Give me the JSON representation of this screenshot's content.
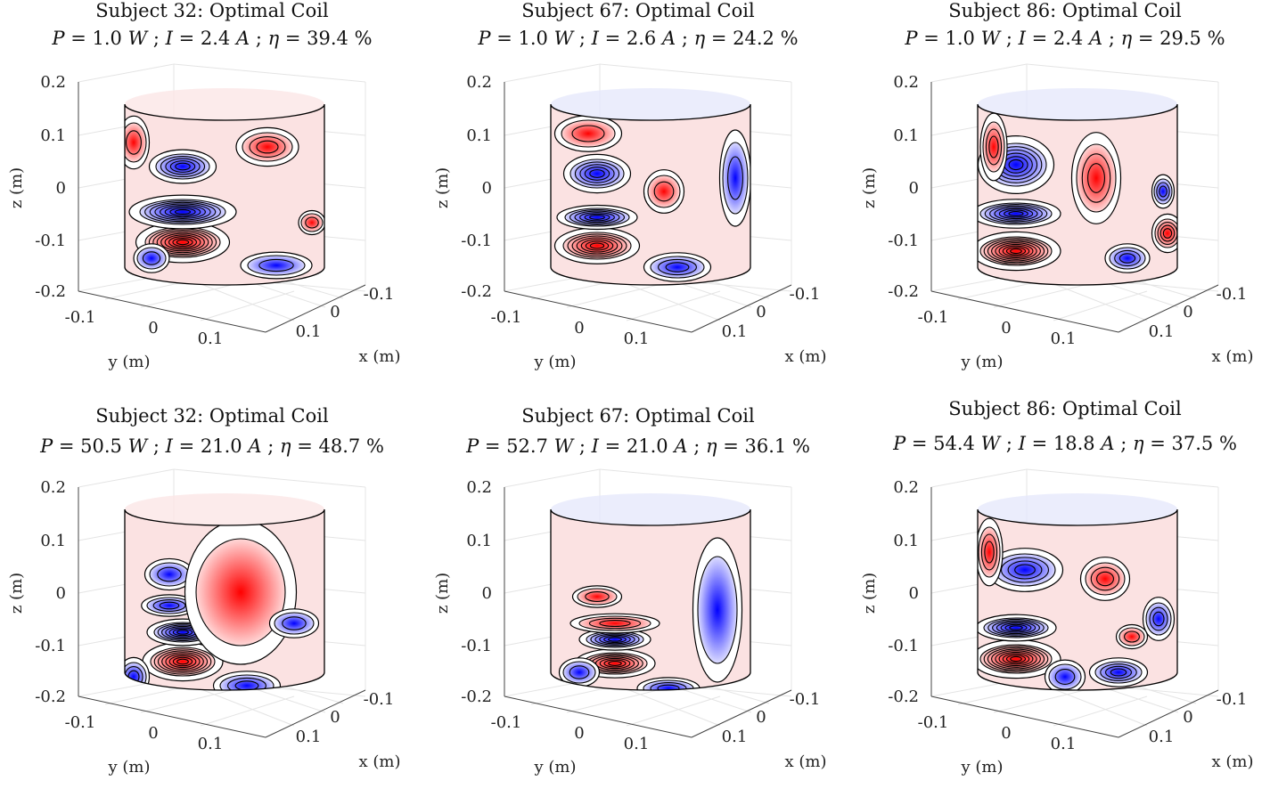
{
  "chart_data": [
    {
      "type": "surface",
      "title": "Subject 32: Optimal Coil",
      "P": "1.0",
      "I": "2.4",
      "eta": "39.4",
      "xlabel": "x (m)",
      "ylabel": "y (m)",
      "zlabel": "z (m)",
      "xticks": [
        "-0.1",
        "0",
        "0.1"
      ],
      "yticks": [
        "-0.1",
        "0",
        "0.1"
      ],
      "zticks": [
        "0.2",
        "0.1",
        "0",
        "-0.1",
        "-0.2"
      ],
      "zlim": [
        -0.2,
        0.2
      ],
      "colormap": [
        "#0000ff",
        "#ffffff",
        "#ff0000"
      ]
    },
    {
      "type": "surface",
      "title": "Subject 67: Optimal Coil",
      "P": "1.0",
      "I": "2.6",
      "eta": "24.2",
      "xlabel": "x (m)",
      "ylabel": "y (m)",
      "zlabel": "z (m)",
      "xticks": [
        "-0.1",
        "0",
        "0.1"
      ],
      "yticks": [
        "-0.1",
        "0",
        "0.1"
      ],
      "zticks": [
        "0.2",
        "0.1",
        "0",
        "-0.1",
        "-0.2"
      ],
      "zlim": [
        -0.2,
        0.2
      ],
      "colormap": [
        "#0000ff",
        "#ffffff",
        "#ff0000"
      ]
    },
    {
      "type": "surface",
      "title": "Subject 86: Optimal Coil",
      "P": "1.0",
      "I": "2.4",
      "eta": "29.5",
      "xlabel": "x (m)",
      "ylabel": "y (m)",
      "zlabel": "z (m)",
      "xticks": [
        "-0.1",
        "0",
        "0.1"
      ],
      "yticks": [
        "-0.1",
        "0",
        "0.1"
      ],
      "zticks": [
        "0.2",
        "0.1",
        "0",
        "-0.1",
        "-0.2"
      ],
      "zlim": [
        -0.2,
        0.2
      ],
      "colormap": [
        "#0000ff",
        "#ffffff",
        "#ff0000"
      ]
    },
    {
      "type": "surface",
      "title": "Subject 32: Optimal Coil",
      "P": "50.5",
      "I": "21.0",
      "eta": "48.7",
      "xlabel": "x (m)",
      "ylabel": "y (m)",
      "zlabel": "z (m)",
      "xticks": [
        "-0.1",
        "0",
        "0.1"
      ],
      "yticks": [
        "-0.1",
        "0",
        "0.1"
      ],
      "zticks": [
        "0.2",
        "0.1",
        "0",
        "-0.1",
        "-0.2"
      ],
      "zlim": [
        -0.2,
        0.2
      ],
      "colormap": [
        "#0000ff",
        "#ffffff",
        "#ff0000"
      ]
    },
    {
      "type": "surface",
      "title": "Subject 67: Optimal Coil",
      "P": "52.7",
      "I": "21.0",
      "eta": "36.1",
      "xlabel": "x (m)",
      "ylabel": "y (m)",
      "zlabel": "z (m)",
      "xticks": [
        "-0.1",
        "0",
        "0.1"
      ],
      "yticks": [
        "-0.1",
        "0",
        "0.1"
      ],
      "zticks": [
        "0.2",
        "0.1",
        "0",
        "-0.1",
        "-0.2"
      ],
      "zlim": [
        -0.2,
        0.2
      ],
      "colormap": [
        "#0000ff",
        "#ffffff",
        "#ff0000"
      ]
    },
    {
      "type": "surface",
      "title": "Subject 86: Optimal Coil",
      "P": "54.4",
      "I": "18.8",
      "eta": "37.5",
      "xlabel": "x (m)",
      "ylabel": "y (m)",
      "zlabel": "z (m)",
      "xticks": [
        "-0.1",
        "0",
        "0.1"
      ],
      "yticks": [
        "-0.1",
        "0",
        "0.1"
      ],
      "zticks": [
        "0.2",
        "0.1",
        "0",
        "-0.1",
        "-0.2"
      ],
      "zlim": [
        -0.2,
        0.2
      ],
      "colormap": [
        "#0000ff",
        "#ffffff",
        "#ff0000"
      ]
    }
  ],
  "units": {
    "W": "W",
    "A": "A",
    "pct": "%"
  }
}
